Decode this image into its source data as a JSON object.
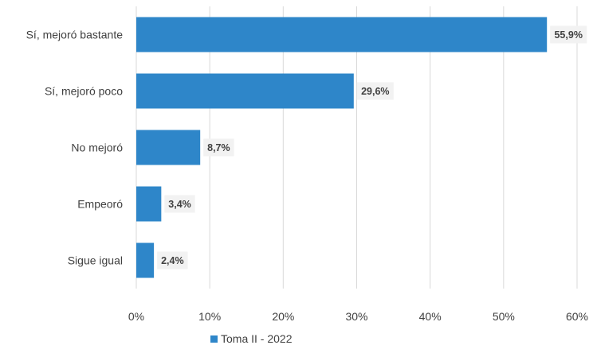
{
  "chart_data": {
    "type": "bar",
    "orientation": "horizontal",
    "categories": [
      "Sí, mejoró bastante",
      "Sí, mejoró poco",
      "No mejoró",
      "Empeoró",
      "Sigue igual"
    ],
    "series": [
      {
        "name": "Toma II - 2022",
        "values": [
          55.9,
          29.6,
          8.7,
          3.4,
          2.4
        ],
        "labels": [
          "55,9%",
          "29,6%",
          "8,7%",
          "3,4%",
          "2,4%"
        ]
      }
    ],
    "x_ticks": [
      "0%",
      "10%",
      "20%",
      "30%",
      "40%",
      "50%",
      "60%"
    ],
    "xlim": [
      0,
      60
    ],
    "grid": "vertical",
    "legend_position": "bottom",
    "colors": {
      "bar": "#2e86c9",
      "grid": "#d9d9d9",
      "label_background": "#f2f2f2",
      "text": "#404040"
    }
  }
}
